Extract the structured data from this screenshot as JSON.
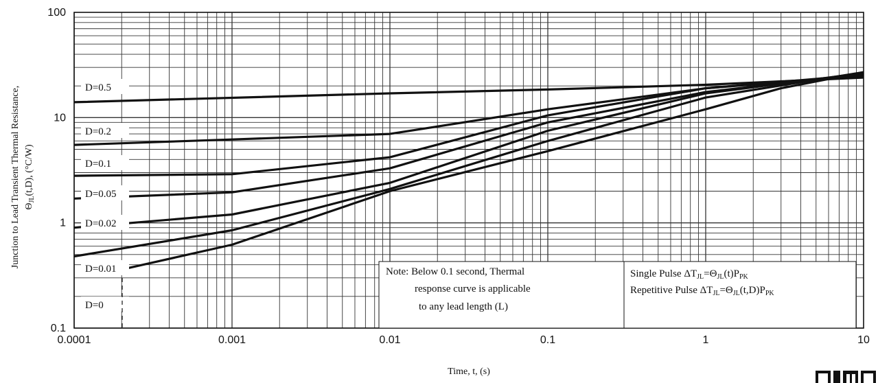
{
  "chart_data": {
    "type": "line",
    "x_scale": "log",
    "y_scale": "log",
    "xlim": [
      0.0001,
      10
    ],
    "ylim": [
      0.1,
      100
    ],
    "x_ticks": [
      "0.0001",
      "0.001",
      "0.01",
      "0.1",
      "1",
      "10"
    ],
    "y_ticks": [
      "0.1",
      "1",
      "10",
      "100"
    ],
    "xlabel": "Time, t, (s)",
    "ylabel_line1": "Junction to Lead Transient Thermal Resistance,",
    "ylabel_line2": "Θ",
    "ylabel_sub": "JL",
    "ylabel_line2_rest": "(t,D),  (°C/W)",
    "grid": true,
    "series": [
      {
        "name": "D=0.5",
        "points": [
          [
            0.0001,
            14.0
          ],
          [
            0.01,
            17.0
          ],
          [
            0.1,
            18.5
          ],
          [
            1,
            20.5
          ],
          [
            10,
            24.0
          ]
        ]
      },
      {
        "name": "D=0.2",
        "points": [
          [
            0.0001,
            5.5
          ],
          [
            0.001,
            6.2
          ],
          [
            0.01,
            7.0
          ],
          [
            0.1,
            12.0
          ],
          [
            1,
            19.0
          ],
          [
            10,
            25.0
          ]
        ]
      },
      {
        "name": "D=0.1",
        "points": [
          [
            0.0001,
            2.8
          ],
          [
            0.001,
            2.9
          ],
          [
            0.01,
            4.2
          ],
          [
            0.1,
            10.5
          ],
          [
            1,
            19.0
          ],
          [
            10,
            25.5
          ]
        ]
      },
      {
        "name": "D=0.05",
        "points": [
          [
            0.0001,
            1.7
          ],
          [
            0.001,
            1.95
          ],
          [
            0.01,
            3.3
          ],
          [
            0.1,
            9.0
          ],
          [
            1,
            17.5
          ],
          [
            10,
            26.0
          ]
        ]
      },
      {
        "name": "D=0.02",
        "points": [
          [
            0.0001,
            0.9
          ],
          [
            0.001,
            1.2
          ],
          [
            0.01,
            2.4
          ],
          [
            0.1,
            7.5
          ],
          [
            1,
            17.0
          ],
          [
            10,
            26.5
          ]
        ]
      },
      {
        "name": "D=0.01",
        "points": [
          [
            0.0001,
            0.48
          ],
          [
            0.001,
            0.85
          ],
          [
            0.01,
            2.1
          ],
          [
            0.1,
            6.0
          ],
          [
            1,
            15.5
          ],
          [
            10,
            27.0
          ]
        ]
      },
      {
        "name": "D=0",
        "points": [
          [
            0.0002,
            0.36
          ],
          [
            0.001,
            0.62
          ],
          [
            0.01,
            2.0
          ],
          [
            0.1,
            4.8
          ],
          [
            1,
            12.0
          ],
          [
            3,
            19.0
          ],
          [
            10,
            27.0
          ]
        ]
      }
    ],
    "annotations": {
      "note_lines": [
        "Note: Below 0.1 second, Thermal",
        "response curve is applicable",
        "to any lead length (L)"
      ],
      "pulse_line1": {
        "a": "Single Pulse ΔT",
        "sub1": "JL",
        "b": "=Θ",
        "sub2": "JL",
        "c": "(t)P",
        "sub3": "PK"
      },
      "pulse_line2": {
        "a": "Repetitive Pulse ΔT",
        "sub1": "JL",
        "b": "=Θ",
        "sub2": "JL",
        "c": "(t,D)P",
        "sub3": "PK"
      }
    },
    "colors": {
      "curve": "#111111",
      "grid": "#333333",
      "background": "#ffffff"
    }
  }
}
